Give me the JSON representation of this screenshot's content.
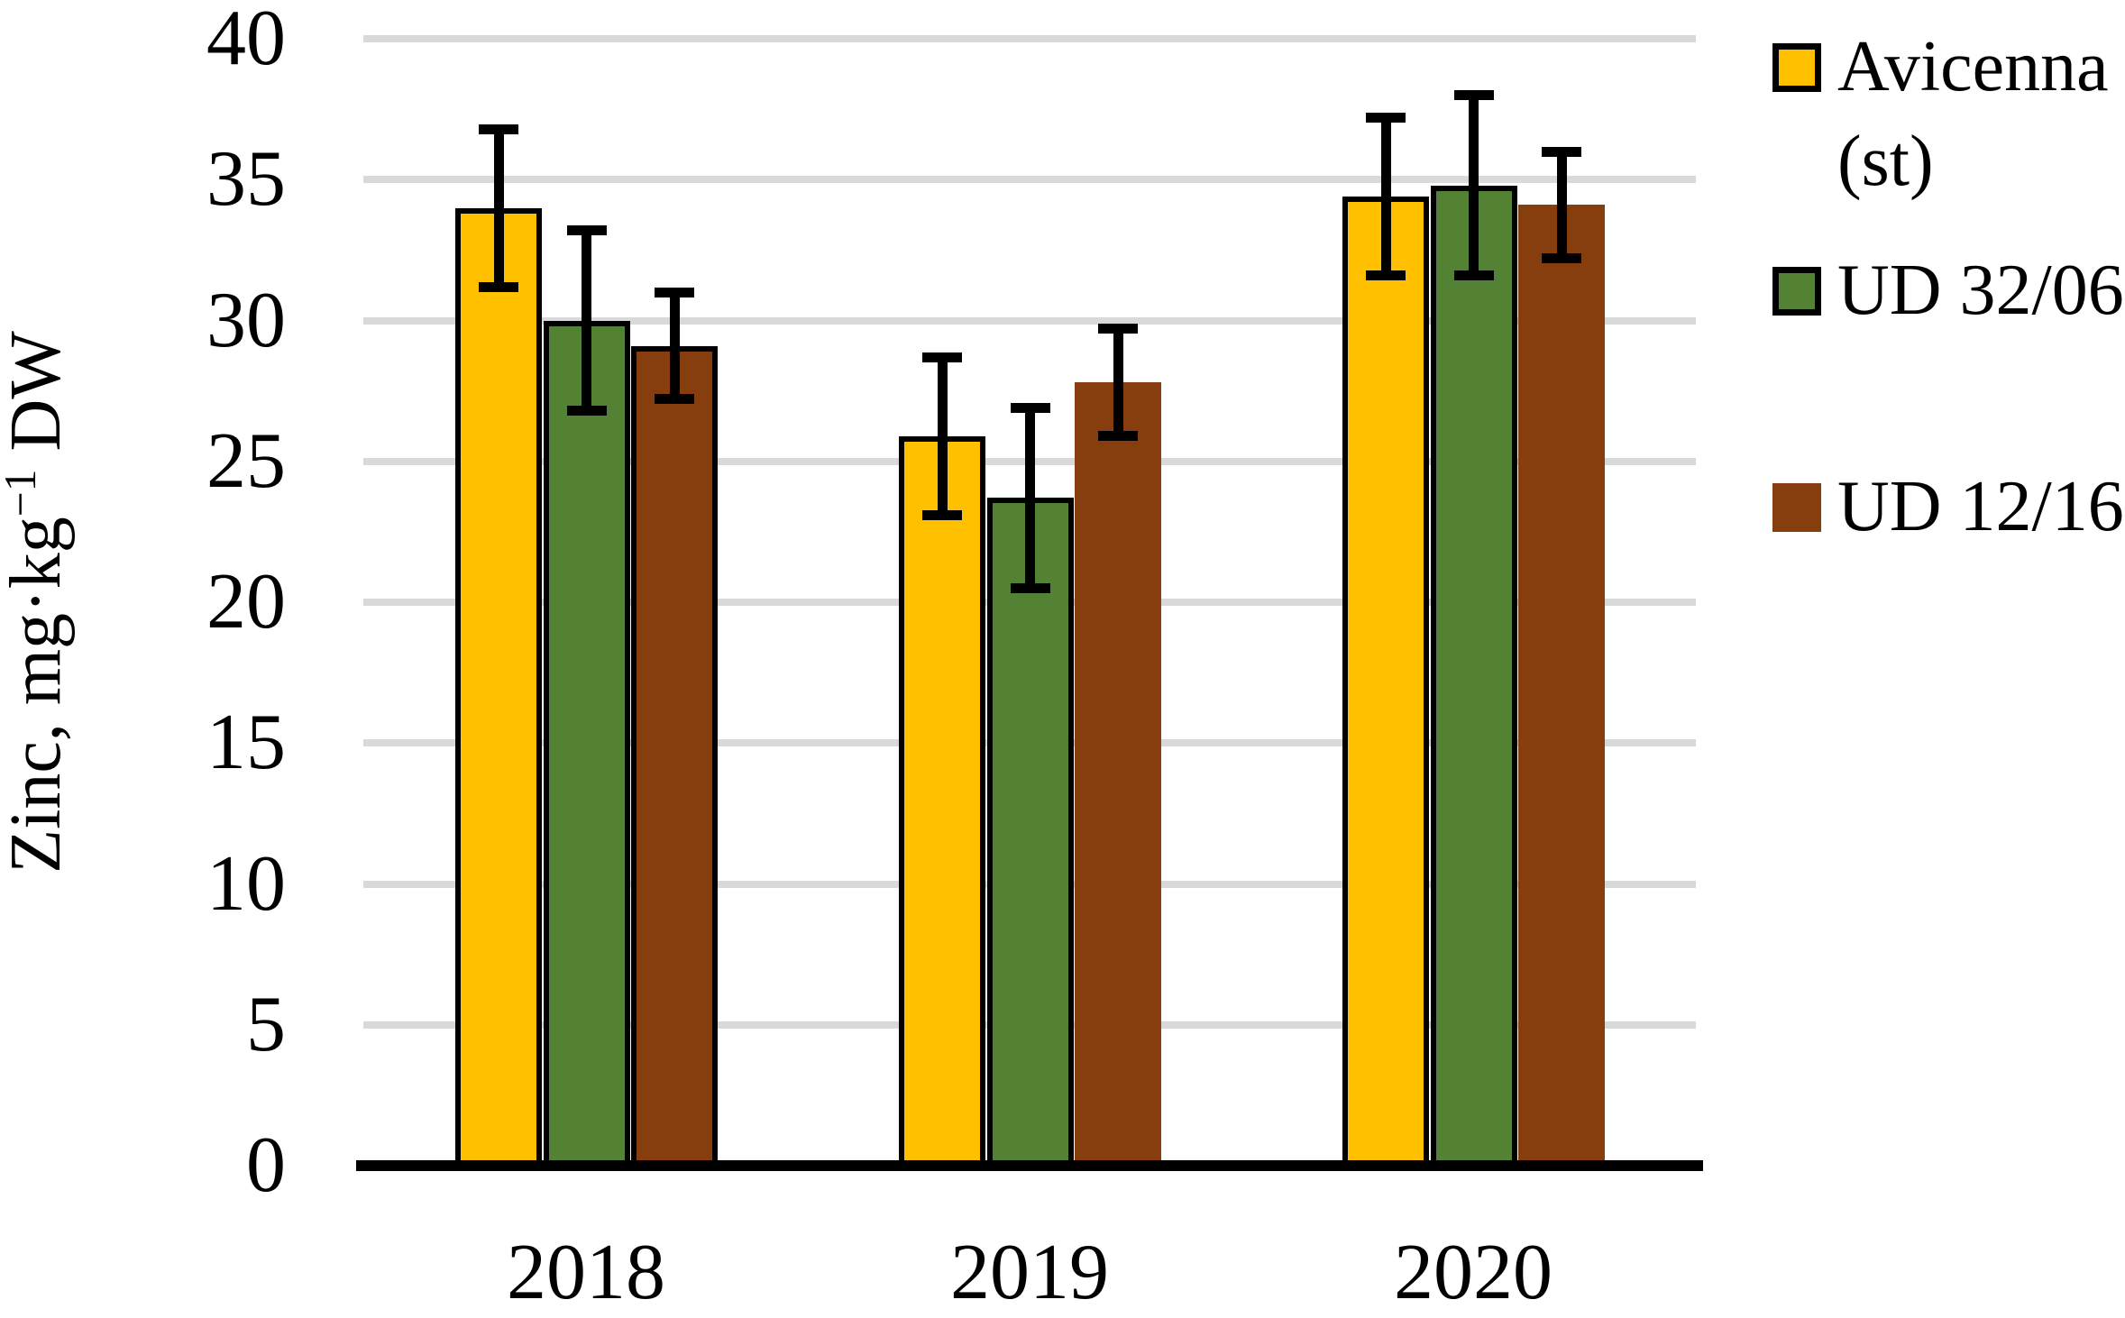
{
  "background_color": "#FFFFFF",
  "chart_data": {
    "type": "bar",
    "title": "",
    "xlabel": "",
    "ylabel": "Zinc, mg·kg⁻¹ DW",
    "ylabel_parts": {
      "prefix": "Zinc, mg·kg",
      "superscript": "−1",
      "suffix": " DW"
    },
    "categories": [
      "2018",
      "2019",
      "2020"
    ],
    "series": [
      {
        "name": "Avicenna (st)",
        "legend_lines": [
          "Avicenna",
          "(st)"
        ],
        "color": "#FFC000",
        "border_color": "#000000",
        "bordered_bars": [
          true,
          true,
          true
        ],
        "legend_swatch_border": true,
        "values": [
          34.0,
          25.9,
          34.4
        ],
        "errors": [
          2.8,
          2.8,
          2.8
        ]
      },
      {
        "name": "UD 32/06",
        "legend_lines": [
          "UD 32/06"
        ],
        "color": "#548235",
        "border_color": "#000000",
        "bordered_bars": [
          true,
          true,
          true
        ],
        "legend_swatch_border": true,
        "values": [
          30.0,
          23.7,
          34.8
        ],
        "errors": [
          3.2,
          3.2,
          3.2
        ]
      },
      {
        "name": "UD 12/16",
        "legend_lines": [
          "UD 12/16"
        ],
        "color": "#873E0F",
        "border_color": "#000000",
        "bordered_bars": [
          true,
          false,
          false
        ],
        "legend_swatch_border": false,
        "values": [
          29.1,
          27.8,
          34.1
        ],
        "errors": [
          1.9,
          1.9,
          1.9
        ]
      }
    ],
    "ylim": [
      0,
      40
    ],
    "yticks": [
      0,
      5,
      10,
      15,
      20,
      25,
      30,
      35,
      40
    ],
    "grid": true,
    "gridline_color": "#D9D9D9",
    "axis_color": "#000000",
    "error_bar_color": "#000000",
    "legend_position": "right"
  }
}
